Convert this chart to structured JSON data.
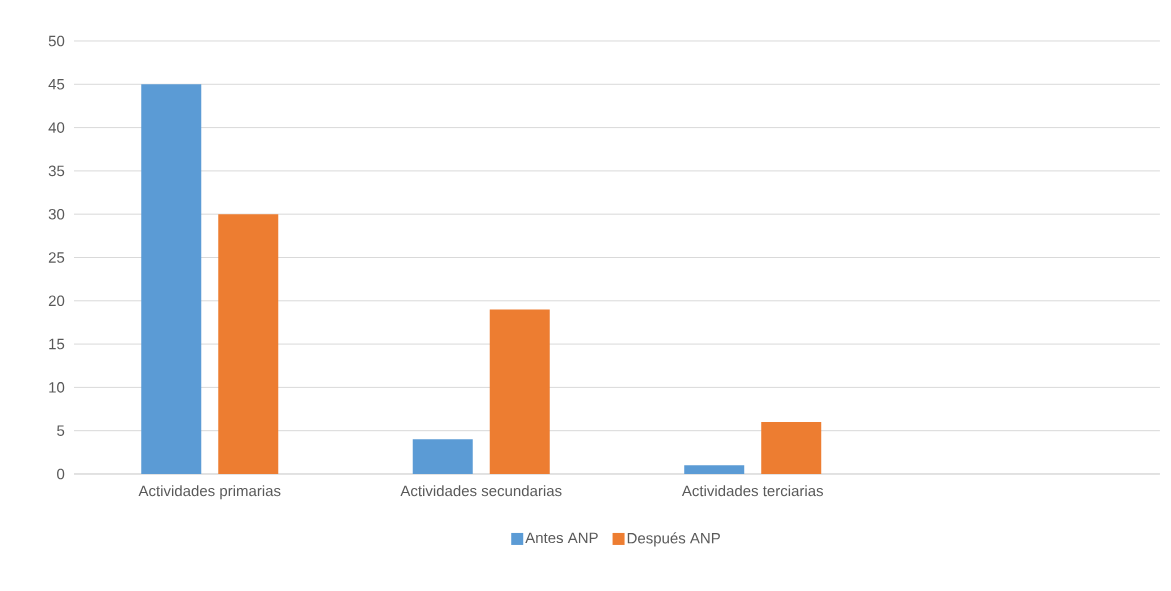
{
  "chart_data": {
    "type": "bar",
    "categories": [
      "Actividades primarias",
      "Actividades secundarias",
      "Actividades terciarias",
      null
    ],
    "series": [
      {
        "name": "Antes ANP",
        "color": "#5b9bd5",
        "values": [
          45,
          4,
          1,
          null
        ]
      },
      {
        "name": "Después ANP",
        "color": "#ed7d31",
        "values": [
          30,
          19,
          6,
          null
        ]
      }
    ],
    "ylim": [
      0,
      50
    ],
    "yticks": [
      0,
      5,
      10,
      15,
      20,
      25,
      30,
      35,
      40,
      45,
      50
    ],
    "grid": "y",
    "legend": "bottom"
  }
}
